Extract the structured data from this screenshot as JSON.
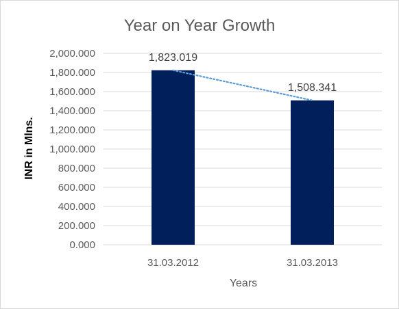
{
  "chart_data": {
    "type": "bar",
    "title": "Year on Year Growth",
    "xlabel": "Years",
    "ylabel": "INR in Mlns.",
    "categories": [
      "31.03.2012",
      "31.03.2013"
    ],
    "values": [
      1823.019,
      1508.341
    ],
    "data_labels": [
      "1,823.019",
      "1,508.341"
    ],
    "ylim": [
      0,
      2000
    ],
    "y_ticks": [
      0,
      200,
      400,
      600,
      800,
      1000,
      1200,
      1400,
      1600,
      1800,
      2000
    ],
    "y_tick_labels": [
      "0.000",
      "200.000",
      "400.000",
      "600.000",
      "800.000",
      "1,000.000",
      "1,200.000",
      "1,400.000",
      "1,600.000",
      "1,800.000",
      "2,000.000"
    ],
    "grid": true,
    "legend": "none",
    "trendline": "linear, dotted",
    "colors": {
      "bar": "#001f5b",
      "trendline": "#5b9bd5",
      "grid": "#d9d9d9"
    }
  }
}
